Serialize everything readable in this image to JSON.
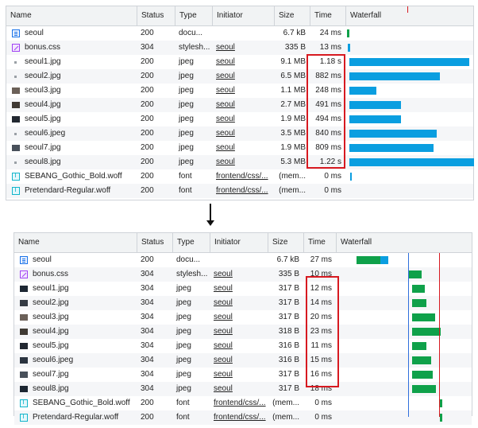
{
  "colors": {
    "header_bg": "#f1f3f4",
    "border": "#cfd3d8",
    "bar_blue": "#0a9ee0",
    "bar_green": "#0fa14a",
    "blue_line": "#2f6fdc",
    "red_line": "#d71920",
    "highlight": "#d71920"
  },
  "top_panel": {
    "headers": [
      "Name",
      "Status",
      "Type",
      "Initiator",
      "Size",
      "Time",
      "Waterfall"
    ],
    "rows": [
      {
        "name": "seoul",
        "status": "200",
        "type": "docu...",
        "initiator": "",
        "size": "6.7 kB",
        "time": "24 ms",
        "icon": "doc-icon"
      },
      {
        "name": "bonus.css",
        "status": "304",
        "type": "stylesh...",
        "initiator": "seoul",
        "size": "335 B",
        "time": "13 ms",
        "icon": "css-icon"
      },
      {
        "name": "seoul1.jpg",
        "status": "200",
        "type": "jpeg",
        "initiator": "seoul",
        "size": "9.1 MB",
        "time": "1.18 s",
        "icon": "image-dot-icon"
      },
      {
        "name": "seoul2.jpg",
        "status": "200",
        "type": "jpeg",
        "initiator": "seoul",
        "size": "6.5 MB",
        "time": "882 ms",
        "icon": "image-dot-icon"
      },
      {
        "name": "seoul3.jpg",
        "status": "200",
        "type": "jpeg",
        "initiator": "seoul",
        "size": "1.1 MB",
        "time": "248 ms",
        "icon": "image-thumb-icon"
      },
      {
        "name": "seoul4.jpg",
        "status": "200",
        "type": "jpeg",
        "initiator": "seoul",
        "size": "2.7 MB",
        "time": "491 ms",
        "icon": "image-thumb-icon"
      },
      {
        "name": "seoul5.jpg",
        "status": "200",
        "type": "jpeg",
        "initiator": "seoul",
        "size": "1.9 MB",
        "time": "494 ms",
        "icon": "image-thumb-icon"
      },
      {
        "name": "seoul6.jpeg",
        "status": "200",
        "type": "jpeg",
        "initiator": "seoul",
        "size": "3.5 MB",
        "time": "840 ms",
        "icon": "image-dot-icon"
      },
      {
        "name": "seoul7.jpg",
        "status": "200",
        "type": "jpeg",
        "initiator": "seoul",
        "size": "1.9 MB",
        "time": "809 ms",
        "icon": "image-thumb-icon"
      },
      {
        "name": "seoul8.jpg",
        "status": "200",
        "type": "jpeg",
        "initiator": "seoul",
        "size": "5.3 MB",
        "time": "1.22 s",
        "icon": "image-dot-icon"
      },
      {
        "name": "SEBANG_Gothic_Bold.woff",
        "status": "200",
        "type": "font",
        "initiator": "frontend/css/...",
        "size": "(mem...",
        "time": "0 ms",
        "icon": "font-icon"
      },
      {
        "name": "Pretendard-Regular.woff",
        "status": "200",
        "type": "font",
        "initiator": "frontend/css/...",
        "size": "(mem...",
        "time": "0 ms",
        "icon": "font-icon"
      }
    ]
  },
  "bottom_panel": {
    "headers": [
      "Name",
      "Status",
      "Type",
      "Initiator",
      "Size",
      "Time",
      "Waterfall"
    ],
    "rows": [
      {
        "name": "seoul",
        "status": "200",
        "type": "docu...",
        "initiator": "",
        "size": "6.7 kB",
        "time": "27 ms",
        "icon": "doc-icon"
      },
      {
        "name": "bonus.css",
        "status": "304",
        "type": "stylesh...",
        "initiator": "seoul",
        "size": "335 B",
        "time": "10 ms",
        "icon": "css-icon"
      },
      {
        "name": "seoul1.jpg",
        "status": "304",
        "type": "jpeg",
        "initiator": "seoul",
        "size": "317 B",
        "time": "12 ms",
        "icon": "image-thumb-icon"
      },
      {
        "name": "seoul2.jpg",
        "status": "304",
        "type": "jpeg",
        "initiator": "seoul",
        "size": "317 B",
        "time": "14 ms",
        "icon": "image-thumb-icon"
      },
      {
        "name": "seoul3.jpg",
        "status": "304",
        "type": "jpeg",
        "initiator": "seoul",
        "size": "317 B",
        "time": "20 ms",
        "icon": "image-thumb-icon"
      },
      {
        "name": "seoul4.jpg",
        "status": "304",
        "type": "jpeg",
        "initiator": "seoul",
        "size": "318 B",
        "time": "23 ms",
        "icon": "image-thumb-icon"
      },
      {
        "name": "seoul5.jpg",
        "status": "304",
        "type": "jpeg",
        "initiator": "seoul",
        "size": "316 B",
        "time": "11 ms",
        "icon": "image-thumb-icon"
      },
      {
        "name": "seoul6.jpeg",
        "status": "304",
        "type": "jpeg",
        "initiator": "seoul",
        "size": "316 B",
        "time": "15 ms",
        "icon": "image-thumb-icon"
      },
      {
        "name": "seoul7.jpg",
        "status": "304",
        "type": "jpeg",
        "initiator": "seoul",
        "size": "317 B",
        "time": "16 ms",
        "icon": "image-thumb-icon"
      },
      {
        "name": "seoul8.jpg",
        "status": "304",
        "type": "jpeg",
        "initiator": "seoul",
        "size": "317 B",
        "time": "18 ms",
        "icon": "image-thumb-icon"
      },
      {
        "name": "SEBANG_Gothic_Bold.woff",
        "status": "200",
        "type": "font",
        "initiator": "frontend/css/...",
        "size": "(mem...",
        "time": "0 ms",
        "icon": "font-icon"
      },
      {
        "name": "Pretendard-Regular.woff",
        "status": "200",
        "type": "font",
        "initiator": "frontend/css/...",
        "size": "(mem...",
        "time": "0 ms",
        "icon": "font-icon"
      }
    ]
  }
}
